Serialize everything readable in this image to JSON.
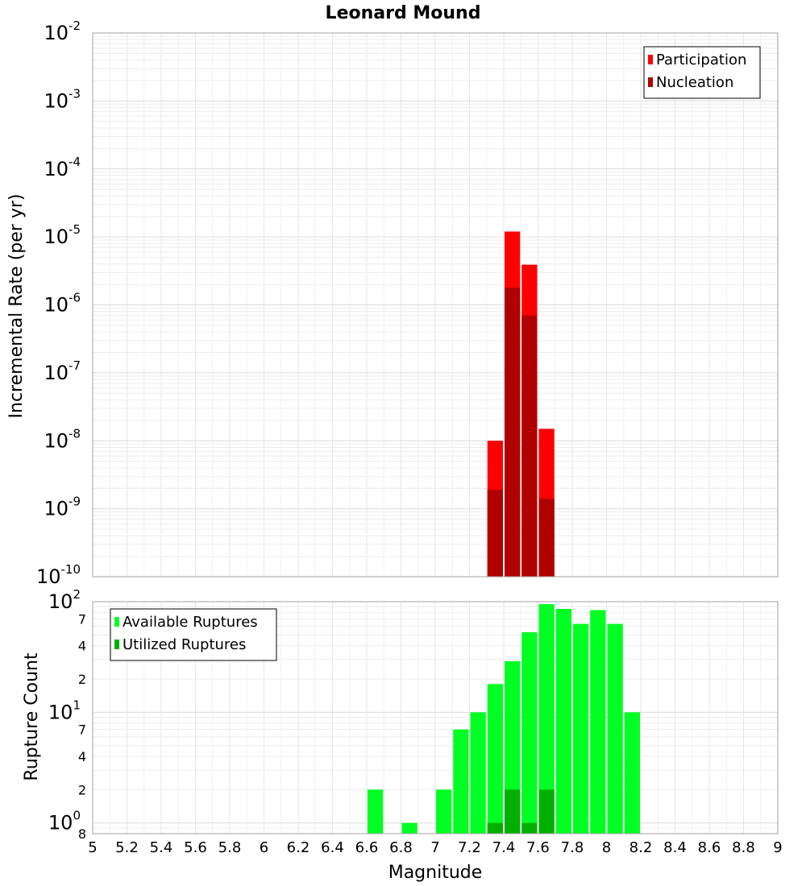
{
  "chart_data": [
    {
      "type": "bar",
      "title": "Leonard Mound",
      "ylabel": "Incremental Rate (per yr)",
      "xlabel": "",
      "yscale": "log",
      "ylim": [
        1e-10,
        0.01
      ],
      "xlim": [
        5,
        9
      ],
      "legend_position": "top-right",
      "bar_width": 0.1,
      "x_ticks": [
        "5",
        "5.2",
        "5.4",
        "5.6",
        "5.8",
        "6",
        "6.2",
        "6.4",
        "6.6",
        "6.8",
        "7",
        "7.2",
        "7.4",
        "7.6",
        "7.8",
        "8",
        "8.2",
        "8.4",
        "8.6",
        "8.8",
        "9"
      ],
      "y_ticks": [
        {
          "base": "10",
          "exp": "-2"
        },
        {
          "base": "10",
          "exp": "-3"
        },
        {
          "base": "10",
          "exp": "-4"
        },
        {
          "base": "10",
          "exp": "-5"
        },
        {
          "base": "10",
          "exp": "-6"
        },
        {
          "base": "10",
          "exp": "-7"
        },
        {
          "base": "10",
          "exp": "-8"
        },
        {
          "base": "10",
          "exp": "-9"
        },
        {
          "base": "10",
          "exp": "-10"
        }
      ],
      "series": [
        {
          "name": "Participation",
          "color": "#ff0000",
          "x": [
            7.35,
            7.45,
            7.55,
            7.65
          ],
          "values": [
            1e-08,
            1.2e-05,
            3.9e-06,
            1.5e-08
          ]
        },
        {
          "name": "Nucleation",
          "color": "#b00000",
          "x": [
            7.35,
            7.45,
            7.55,
            7.65
          ],
          "values": [
            1.9e-09,
            1.8e-06,
            7e-07,
            1.4e-09
          ]
        }
      ],
      "grid": true
    },
    {
      "type": "bar",
      "ylabel": "Rupture Count",
      "xlabel": "Magnitude",
      "yscale": "log",
      "ylim": [
        0.8,
        100
      ],
      "xlim": [
        5,
        9
      ],
      "legend_position": "top-left",
      "bar_width": 0.1,
      "x_ticks": [
        "5",
        "5.2",
        "5.4",
        "5.6",
        "5.8",
        "6",
        "6.2",
        "6.4",
        "6.6",
        "6.8",
        "7",
        "7.2",
        "7.4",
        "7.6",
        "7.8",
        "8",
        "8.2",
        "8.4",
        "8.6",
        "8.8",
        "9"
      ],
      "y_major_ticks": [
        {
          "base": "10",
          "exp": "2"
        },
        {
          "base": "10",
          "exp": "1"
        },
        {
          "base": "10",
          "exp": "0"
        }
      ],
      "y_minor_ticks": [
        {
          "label": "7",
          "value": 70
        },
        {
          "label": "4",
          "value": 40
        },
        {
          "label": "2",
          "value": 20
        },
        {
          "label": "7",
          "value": 7
        },
        {
          "label": "4",
          "value": 4
        },
        {
          "label": "2",
          "value": 2
        },
        {
          "label": "8",
          "value": 0.8
        }
      ],
      "series": [
        {
          "name": "Available Ruptures",
          "color": "#00ff22",
          "x": [
            6.65,
            6.85,
            7.05,
            7.15,
            7.25,
            7.35,
            7.45,
            7.55,
            7.65,
            7.75,
            7.85,
            7.95,
            8.05,
            8.15
          ],
          "values": [
            2,
            1,
            2,
            7,
            10,
            18,
            29,
            53,
            95,
            86,
            63,
            84,
            63,
            10
          ]
        },
        {
          "name": "Utilized Ruptures",
          "color": "#00b000",
          "x": [
            7.35,
            7.45,
            7.55,
            7.65
          ],
          "values": [
            1,
            2,
            1,
            2
          ]
        }
      ],
      "grid": true
    }
  ]
}
